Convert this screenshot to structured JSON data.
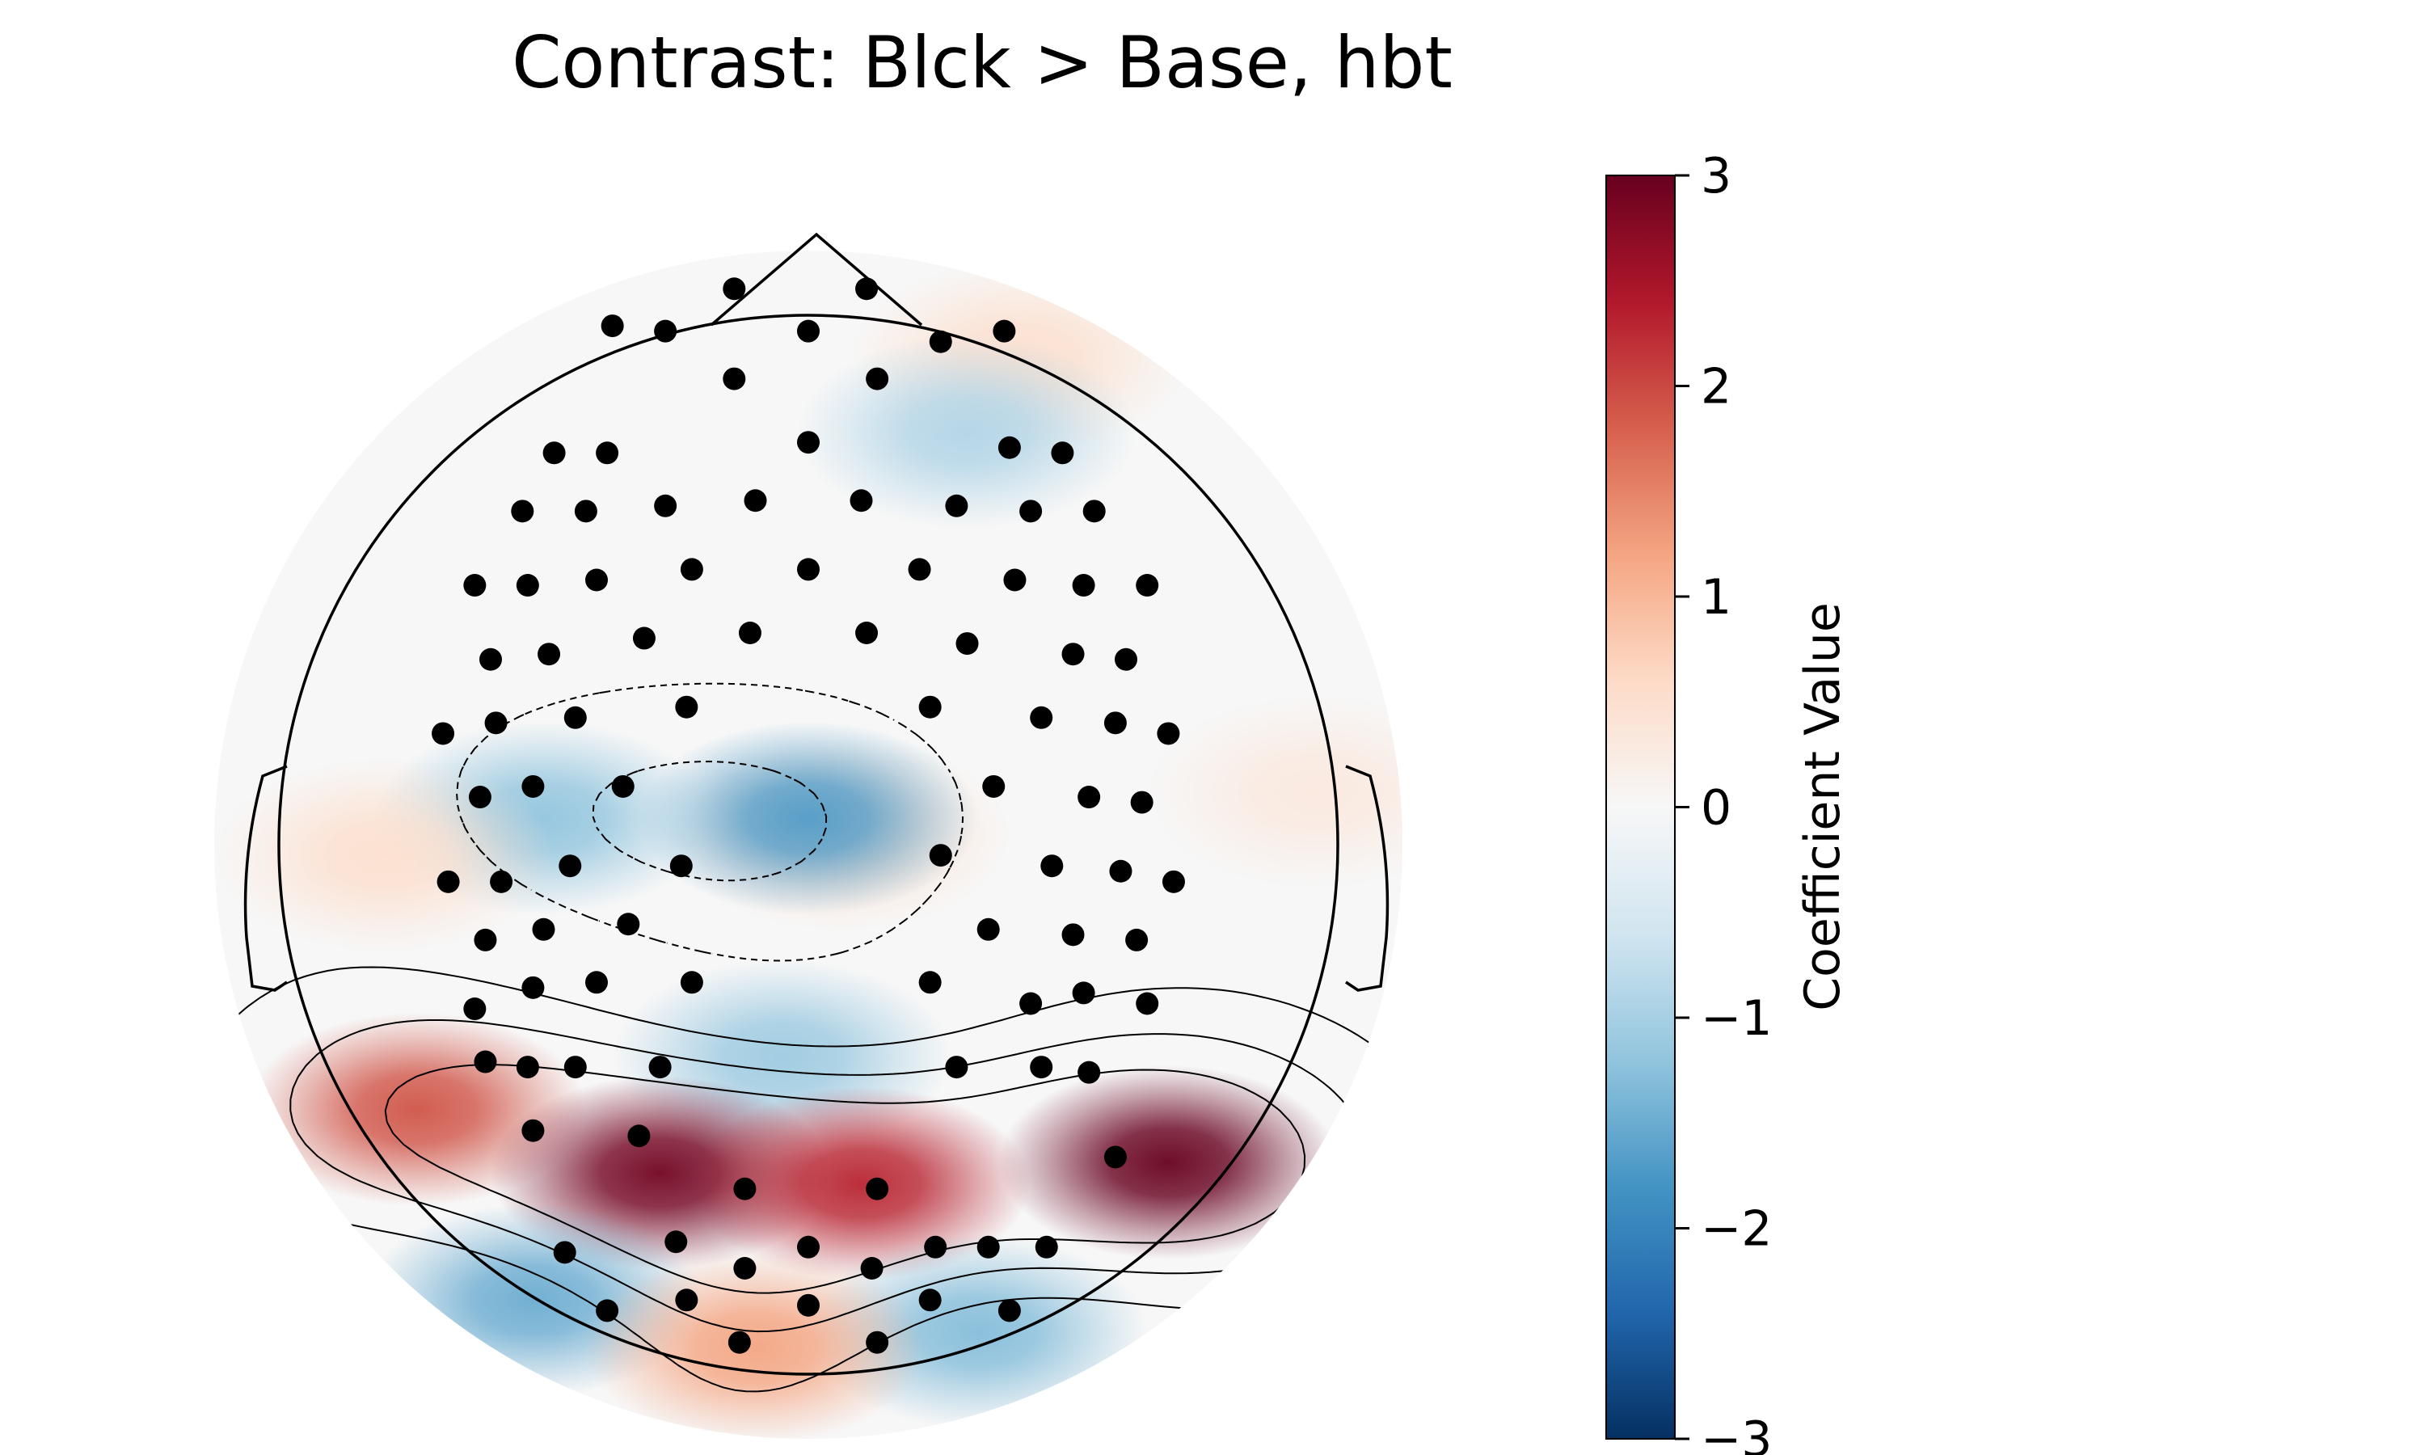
{
  "chart_data": {
    "type": "heatmap",
    "subtype": "topographic-map",
    "title": "Contrast: Blck > Base, hbt",
    "colormap": "RdBu_r",
    "colorbar": {
      "label": "Coefficient Value",
      "range": [
        -3,
        3
      ],
      "ticks": [
        "3",
        "2",
        "1",
        "0",
        "−1",
        "−2",
        "−3"
      ]
    },
    "blobs": [
      {
        "nx": 0.06,
        "ny": -0.02,
        "value": 0.5
      },
      {
        "nx": 0.96,
        "ny": -0.1,
        "value": 0.3
      },
      {
        "nx": 0.4,
        "ny": -0.92,
        "value": 0.5
      },
      {
        "nx": 0.0,
        "ny": -0.05,
        "value": -1.7
      },
      {
        "nx": -0.5,
        "ny": -0.05,
        "value": -1.2
      },
      {
        "nx": -0.05,
        "ny": 0.4,
        "value": -1.1
      },
      {
        "nx": 0.3,
        "ny": -0.78,
        "value": -0.9
      },
      {
        "nx": -0.8,
        "ny": 0.02,
        "value": 0.5
      },
      {
        "nx": -0.74,
        "ny": 0.5,
        "value": 1.9
      },
      {
        "nx": -0.28,
        "ny": 0.62,
        "value": 2.9
      },
      {
        "nx": 0.1,
        "ny": 0.64,
        "value": 2.3
      },
      {
        "nx": 0.68,
        "ny": 0.6,
        "value": 3.2
      },
      {
        "nx": -0.52,
        "ny": 0.86,
        "value": -1.5
      },
      {
        "nx": 0.32,
        "ny": 0.92,
        "value": -1.3
      },
      {
        "nx": -0.1,
        "ny": 0.95,
        "value": 1.2
      }
    ],
    "sensors_normalized": [
      [
        -0.14,
        -1.05
      ],
      [
        0.11,
        -1.05
      ],
      [
        -0.37,
        -0.98
      ],
      [
        -0.27,
        -0.97
      ],
      [
        0.0,
        -0.97
      ],
      [
        0.25,
        -0.95
      ],
      [
        0.37,
        -0.97
      ],
      [
        -0.14,
        -0.88
      ],
      [
        0.13,
        -0.88
      ],
      [
        -0.48,
        -0.74
      ],
      [
        -0.38,
        -0.74
      ],
      [
        0.0,
        -0.76
      ],
      [
        0.38,
        -0.75
      ],
      [
        0.48,
        -0.74
      ],
      [
        -0.54,
        -0.63
      ],
      [
        -0.42,
        -0.63
      ],
      [
        -0.27,
        -0.64
      ],
      [
        -0.1,
        -0.65
      ],
      [
        0.1,
        -0.65
      ],
      [
        0.28,
        -0.64
      ],
      [
        0.42,
        -0.63
      ],
      [
        0.54,
        -0.63
      ],
      [
        -0.63,
        -0.49
      ],
      [
        -0.53,
        -0.49
      ],
      [
        -0.4,
        -0.5
      ],
      [
        -0.22,
        -0.52
      ],
      [
        0.0,
        -0.52
      ],
      [
        0.21,
        -0.52
      ],
      [
        0.39,
        -0.5
      ],
      [
        0.52,
        -0.49
      ],
      [
        0.64,
        -0.49
      ],
      [
        -0.6,
        -0.35
      ],
      [
        -0.49,
        -0.36
      ],
      [
        -0.31,
        -0.39
      ],
      [
        -0.11,
        -0.4
      ],
      [
        0.11,
        -0.4
      ],
      [
        0.3,
        -0.38
      ],
      [
        0.5,
        -0.36
      ],
      [
        0.6,
        -0.35
      ],
      [
        -0.69,
        -0.21
      ],
      [
        -0.59,
        -0.23
      ],
      [
        -0.44,
        -0.24
      ],
      [
        -0.23,
        -0.26
      ],
      [
        0.23,
        -0.26
      ],
      [
        0.44,
        -0.24
      ],
      [
        0.58,
        -0.23
      ],
      [
        0.68,
        -0.21
      ],
      [
        -0.62,
        -0.09
      ],
      [
        -0.52,
        -0.11
      ],
      [
        -0.35,
        -0.11
      ],
      [
        0.35,
        -0.11
      ],
      [
        0.53,
        -0.09
      ],
      [
        0.63,
        -0.08
      ],
      [
        -0.68,
        0.07
      ],
      [
        -0.58,
        0.07
      ],
      [
        -0.45,
        0.04
      ],
      [
        -0.24,
        0.04
      ],
      [
        0.25,
        0.02
      ],
      [
        0.46,
        0.04
      ],
      [
        0.59,
        0.05
      ],
      [
        0.69,
        0.07
      ],
      [
        -0.61,
        0.18
      ],
      [
        -0.5,
        0.16
      ],
      [
        -0.34,
        0.15
      ],
      [
        0.34,
        0.16
      ],
      [
        0.5,
        0.17
      ],
      [
        0.62,
        0.18
      ],
      [
        -0.63,
        0.31
      ],
      [
        -0.52,
        0.27
      ],
      [
        -0.4,
        0.26
      ],
      [
        -0.22,
        0.26
      ],
      [
        0.23,
        0.26
      ],
      [
        0.42,
        0.3
      ],
      [
        0.52,
        0.28
      ],
      [
        0.64,
        0.3
      ],
      [
        -0.61,
        0.41
      ],
      [
        -0.53,
        0.42
      ],
      [
        -0.44,
        0.42
      ],
      [
        -0.28,
        0.42
      ],
      [
        0.28,
        0.42
      ],
      [
        0.44,
        0.42
      ],
      [
        0.53,
        0.43
      ],
      [
        -0.52,
        0.54
      ],
      [
        -0.32,
        0.55
      ],
      [
        -0.12,
        0.65
      ],
      [
        0.13,
        0.65
      ],
      [
        0.58,
        0.59
      ],
      [
        -0.46,
        0.77
      ],
      [
        -0.25,
        0.75
      ],
      [
        -0.12,
        0.8
      ],
      [
        0.0,
        0.76
      ],
      [
        0.12,
        0.8
      ],
      [
        0.24,
        0.76
      ],
      [
        0.34,
        0.76
      ],
      [
        0.45,
        0.76
      ],
      [
        -0.38,
        0.88
      ],
      [
        -0.23,
        0.86
      ],
      [
        0.0,
        0.87
      ],
      [
        0.23,
        0.86
      ],
      [
        0.38,
        0.88
      ],
      [
        -0.13,
        0.94
      ],
      [
        0.13,
        0.94
      ]
    ]
  }
}
